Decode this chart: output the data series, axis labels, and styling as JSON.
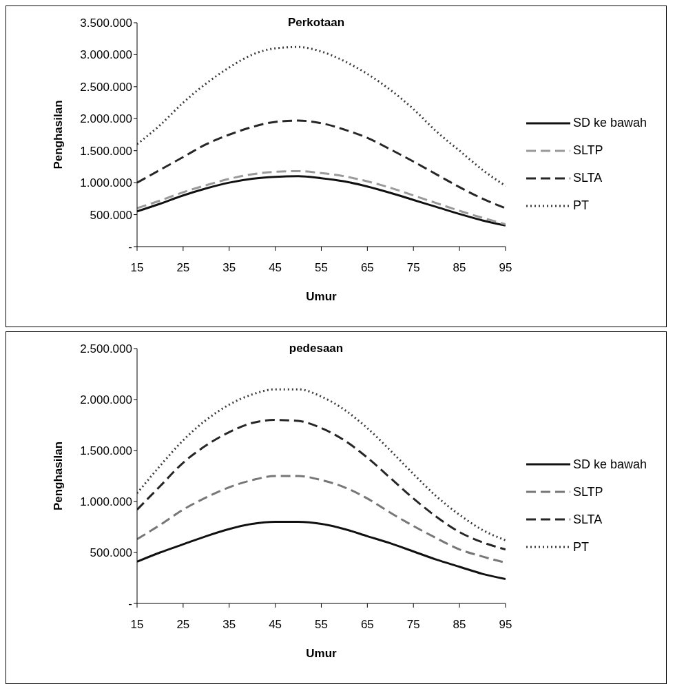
{
  "chart_data": [
    {
      "type": "line",
      "title": "Perkotaan",
      "xlabel": "Umur",
      "ylabel": "Penghasilan",
      "x": [
        15,
        20,
        25,
        30,
        35,
        40,
        45,
        50,
        55,
        60,
        65,
        70,
        75,
        80,
        85,
        90,
        95
      ],
      "xlim": [
        15,
        95
      ],
      "xticks": [
        15,
        25,
        35,
        45,
        55,
        65,
        75,
        85,
        95
      ],
      "ylim": [
        0,
        3500000
      ],
      "yticks": [
        {
          "value": 0,
          "label": "-"
        },
        {
          "value": 500000,
          "label": "500.000"
        },
        {
          "value": 1000000,
          "label": "1.000.000"
        },
        {
          "value": 1500000,
          "label": "1.500.000"
        },
        {
          "value": 2000000,
          "label": "2.000.000"
        },
        {
          "value": 2500000,
          "label": "2.500.000"
        },
        {
          "value": 3000000,
          "label": "3.000.000"
        },
        {
          "value": 3500000,
          "label": "3.500.000"
        }
      ],
      "grid": false,
      "legend": "right",
      "marker": "none",
      "series": [
        {
          "name": "SD ke bawah",
          "color": "#111111",
          "line_style": "solid",
          "values": [
            550000,
            670000,
            800000,
            910000,
            1000000,
            1060000,
            1090000,
            1100000,
            1070000,
            1020000,
            940000,
            840000,
            730000,
            620000,
            510000,
            410000,
            330000
          ]
        },
        {
          "name": "SLTP",
          "color": "#999999",
          "line_style": "dashed",
          "values": [
            600000,
            720000,
            850000,
            960000,
            1060000,
            1130000,
            1170000,
            1180000,
            1150000,
            1100000,
            1020000,
            920000,
            800000,
            680000,
            560000,
            450000,
            350000
          ]
        },
        {
          "name": "SLTA",
          "color": "#262626",
          "line_style": "dashed",
          "values": [
            1000000,
            1200000,
            1400000,
            1600000,
            1750000,
            1870000,
            1950000,
            1970000,
            1930000,
            1830000,
            1700000,
            1520000,
            1330000,
            1130000,
            930000,
            750000,
            600000
          ]
        },
        {
          "name": "PT",
          "color": "#3a3a3a",
          "line_style": "dotted",
          "values": [
            1600000,
            1900000,
            2250000,
            2550000,
            2800000,
            3000000,
            3100000,
            3120000,
            3050000,
            2900000,
            2700000,
            2450000,
            2150000,
            1800000,
            1500000,
            1200000,
            950000
          ]
        }
      ]
    },
    {
      "type": "line",
      "title": "pedesaan",
      "xlabel": "Umur",
      "ylabel": "Penghasilan",
      "x": [
        15,
        20,
        25,
        30,
        35,
        40,
        45,
        50,
        55,
        60,
        65,
        70,
        75,
        80,
        85,
        90,
        95
      ],
      "xlim": [
        15,
        95
      ],
      "xticks": [
        15,
        25,
        35,
        45,
        55,
        65,
        75,
        85,
        95
      ],
      "ylim": [
        0,
        2500000
      ],
      "yticks": [
        {
          "value": 0,
          "label": "-"
        },
        {
          "value": 500000,
          "label": "500.000"
        },
        {
          "value": 1000000,
          "label": "1.000.000"
        },
        {
          "value": 1500000,
          "label": "1.500.000"
        },
        {
          "value": 2000000,
          "label": "2.000.000"
        },
        {
          "value": 2500000,
          "label": "2.500.000"
        }
      ],
      "grid": false,
      "legend": "right",
      "marker": "none",
      "series": [
        {
          "name": "SD ke bawah",
          "color": "#111111",
          "line_style": "solid",
          "values": [
            410000,
            500000,
            580000,
            660000,
            730000,
            780000,
            800000,
            800000,
            780000,
            730000,
            660000,
            590000,
            510000,
            430000,
            360000,
            290000,
            240000
          ]
        },
        {
          "name": "SLTP",
          "color": "#777777",
          "line_style": "dashed",
          "values": [
            630000,
            770000,
            920000,
            1040000,
            1140000,
            1210000,
            1250000,
            1250000,
            1210000,
            1140000,
            1030000,
            890000,
            760000,
            640000,
            530000,
            460000,
            400000
          ]
        },
        {
          "name": "SLTA",
          "color": "#262626",
          "line_style": "dashed",
          "values": [
            920000,
            1150000,
            1380000,
            1550000,
            1680000,
            1770000,
            1800000,
            1790000,
            1720000,
            1600000,
            1430000,
            1230000,
            1030000,
            850000,
            700000,
            600000,
            530000
          ]
        },
        {
          "name": "PT",
          "color": "#3a3a3a",
          "line_style": "dotted",
          "values": [
            1080000,
            1350000,
            1600000,
            1800000,
            1950000,
            2050000,
            2100000,
            2100000,
            2030000,
            1900000,
            1720000,
            1500000,
            1270000,
            1050000,
            870000,
            720000,
            620000
          ]
        }
      ]
    }
  ]
}
